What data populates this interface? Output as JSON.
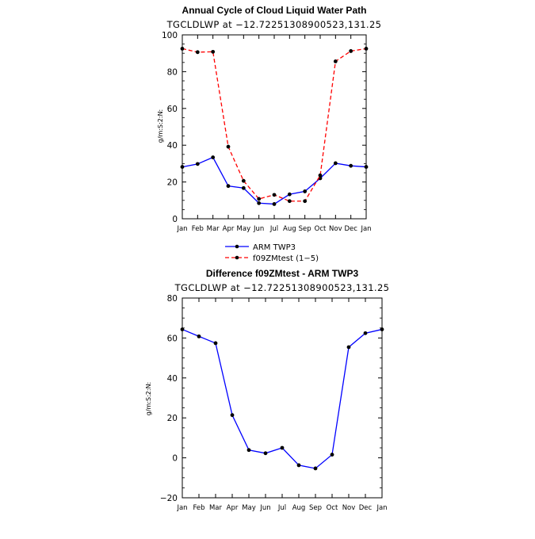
{
  "chart_data": [
    {
      "type": "line",
      "title": "Annual Cycle of Cloud Liquid Water Path",
      "subtitle": "TGCLDLWP at −12.72251308900523,131.25",
      "xlabel": "",
      "ylabel": "g/m:S:2:N:",
      "categories": [
        "Jan",
        "Feb",
        "Mar",
        "Apr",
        "May",
        "Jun",
        "Jul",
        "Aug",
        "Sep",
        "Oct",
        "Nov",
        "Dec",
        "Jan"
      ],
      "ylim": [
        0,
        100
      ],
      "yticks": [
        0,
        20,
        40,
        60,
        80,
        100
      ],
      "series": [
        {
          "name": "ARM  TWP3",
          "color": "#0000ff",
          "dash": "solid",
          "values": [
            28.2,
            29.8,
            33.4,
            17.8,
            16.7,
            8.5,
            8.0,
            13.3,
            14.9,
            22.0,
            30.2,
            28.8,
            28.2
          ]
        },
        {
          "name": "f09ZMtest (1−5)",
          "color": "#ff0000",
          "dash": "dashed",
          "values": [
            92.5,
            90.6,
            90.8,
            39.2,
            20.6,
            10.8,
            13.0,
            9.6,
            9.6,
            23.6,
            85.6,
            91.2,
            92.5
          ]
        }
      ],
      "legend_position": "below"
    },
    {
      "type": "line",
      "title": "Difference f09ZMtest - ARM TWP3",
      "subtitle": "TGCLDLWP at −12.72251308900523,131.25",
      "xlabel": "",
      "ylabel": "g/m:S:2:N:",
      "categories": [
        "Jan",
        "Feb",
        "Mar",
        "Apr",
        "May",
        "Jun",
        "Jul",
        "Aug",
        "Sep",
        "Oct",
        "Nov",
        "Dec",
        "Jan"
      ],
      "ylim": [
        -20,
        80
      ],
      "yticks": [
        -20,
        0,
        20,
        40,
        60,
        80
      ],
      "series": [
        {
          "name": "Difference",
          "color": "#0000ff",
          "dash": "solid",
          "values": [
            64.3,
            60.8,
            57.4,
            21.4,
            3.9,
            2.3,
            5.0,
            -3.7,
            -5.3,
            1.6,
            55.4,
            62.4,
            64.3
          ]
        }
      ]
    }
  ]
}
